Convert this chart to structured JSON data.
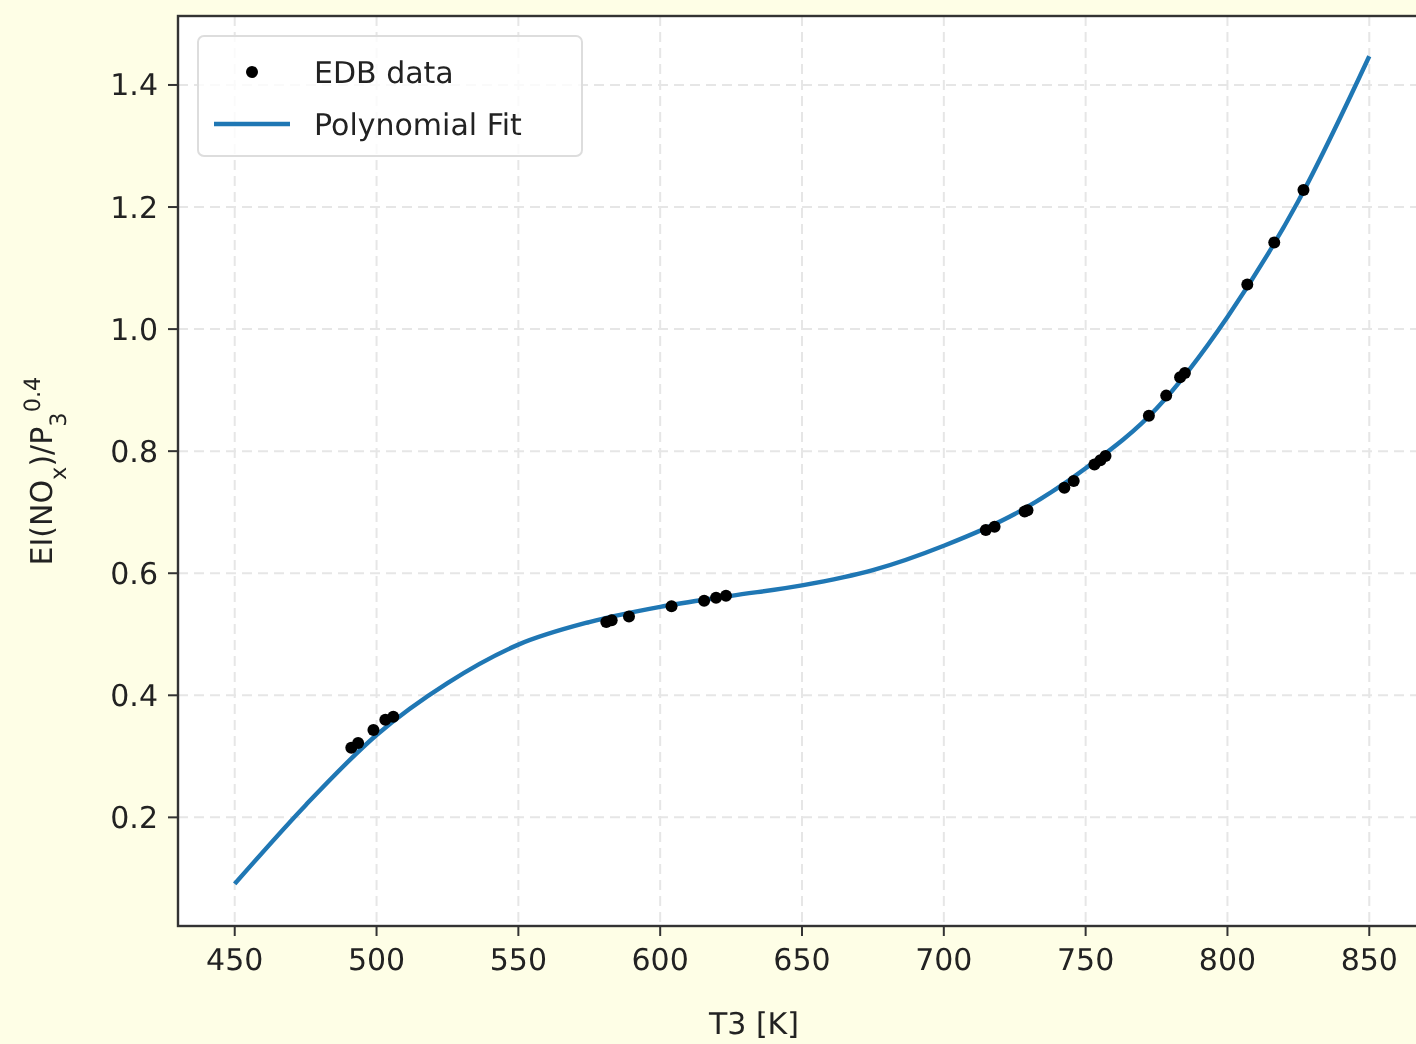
{
  "chart_data": {
    "type": "scatter",
    "xlabel": "T3 [K]",
    "ylabel": "EI(NO$_{x}$)/P$_{3}$$^{0.4}$",
    "xlim": [
      430,
      870
    ],
    "ylim": [
      0.022,
      1.513
    ],
    "xticks": [
      450,
      500,
      550,
      600,
      650,
      700,
      750,
      800,
      850
    ],
    "yticks": [
      {
        "value": 0.2,
        "label": "0.2"
      },
      {
        "value": 0.4,
        "label": "0.4"
      },
      {
        "value": 0.6,
        "label": "0.6"
      },
      {
        "value": 0.8,
        "label": "0.8"
      },
      {
        "value": 1.0,
        "label": "1.0"
      },
      {
        "value": 1.2,
        "label": "1.2"
      },
      {
        "value": 1.4,
        "label": "1.4"
      }
    ],
    "grid": true,
    "legend": "top left",
    "series": [
      {
        "name": "EDB data",
        "color": "#000000",
        "marker": "circle",
        "x": [
          491.1,
          493.5,
          498.9,
          503.1,
          505.9,
          581,
          582.9,
          589,
          604,
          615.5,
          619.7,
          623.2,
          714.8,
          717.9,
          728.5,
          729.5,
          742.5,
          745.8,
          753.1,
          755.2,
          757,
          772.3,
          778.4,
          783.3,
          785,
          807,
          816.5,
          826.8
        ],
        "values": [
          0.314,
          0.322,
          0.343,
          0.36,
          0.365,
          0.52,
          0.523,
          0.529,
          0.546,
          0.555,
          0.56,
          0.563,
          0.671,
          0.676,
          0.701,
          0.703,
          0.74,
          0.751,
          0.778,
          0.785,
          0.792,
          0.858,
          0.891,
          0.921,
          0.928,
          1.073,
          1.142,
          1.228
        ]
      },
      {
        "name": "Polynomial Fit",
        "type": "line",
        "color": "#1f77b4",
        "line_style": "solid",
        "x": [
          450,
          475,
          500,
          525,
          550,
          575,
          600,
          625,
          650,
          675,
          700,
          725,
          750,
          775,
          800,
          825,
          850
        ],
        "values": [
          0.091,
          0.22,
          0.335,
          0.42,
          0.483,
          0.52,
          0.545,
          0.563,
          0.58,
          0.605,
          0.645,
          0.697,
          0.772,
          0.87,
          1.02,
          1.21,
          1.447
        ]
      }
    ]
  }
}
